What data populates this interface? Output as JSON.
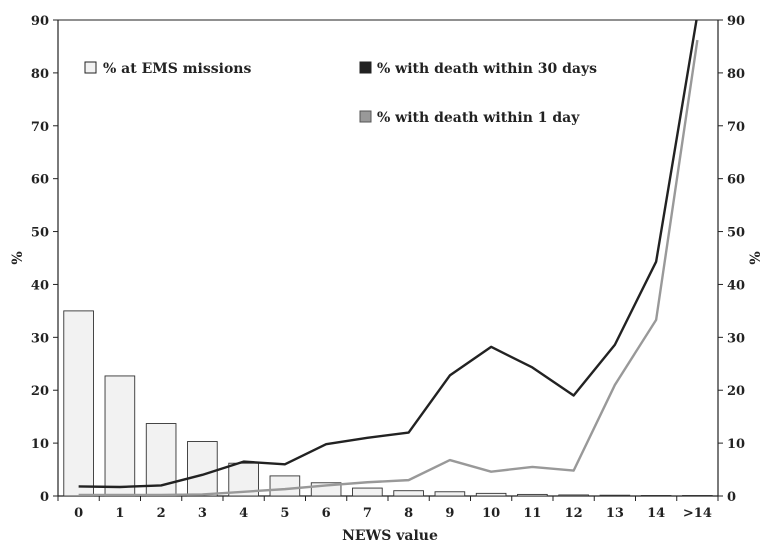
{
  "chart_data": {
    "type": "bar",
    "xlabel": "NEWS value",
    "ylabel_left": "%",
    "ylabel_right": "%",
    "ylim": [
      0,
      90
    ],
    "yticks": [
      0,
      10,
      20,
      30,
      40,
      50,
      60,
      70,
      80,
      90
    ],
    "categories": [
      "0",
      "1",
      "2",
      "3",
      "4",
      "5",
      "6",
      "7",
      "8",
      "9",
      "10",
      "11",
      "12",
      "13",
      "14",
      ">14"
    ],
    "grid": false,
    "legend_placement": "top",
    "series": [
      {
        "name": "% at EMS missions",
        "kind": "bar",
        "color": "#f2f2f2",
        "values": [
          35,
          22.7,
          13.7,
          10.3,
          6.2,
          3.8,
          2.5,
          1.5,
          1.0,
          0.8,
          0.5,
          0.3,
          0.2,
          0.15,
          0.1,
          0.1
        ]
      },
      {
        "name": "% with death within 30 days",
        "kind": "line",
        "color": "#222222",
        "values": [
          1.8,
          1.7,
          2.0,
          4.0,
          6.5,
          6.0,
          9.8,
          11.0,
          12.0,
          22.8,
          28.2,
          24.3,
          19.0,
          28.6,
          44.3,
          91
        ]
      },
      {
        "name": "% with death within 1 day",
        "kind": "line",
        "color": "#999999",
        "values": [
          0.2,
          0.2,
          0.2,
          0.3,
          0.8,
          1.3,
          2.0,
          2.6,
          3.0,
          6.8,
          4.6,
          5.5,
          4.8,
          21.0,
          33.3,
          86.2
        ]
      }
    ]
  }
}
